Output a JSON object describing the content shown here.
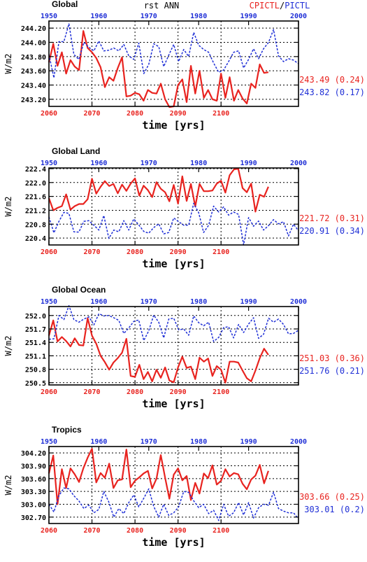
{
  "header": {
    "variable": "rst ANN",
    "legend_red": "CPICTL",
    "legend_sep": "/",
    "legend_blue": "PICTL"
  },
  "colors": {
    "red": "#e8231f",
    "blue": "#1f2fd6"
  },
  "chart_data": [
    {
      "type": "line",
      "title": "Global",
      "xlabel": "time [yrs]",
      "ylabel": "W/m2",
      "grid": true,
      "top_ticks": [
        "1950",
        "1960",
        "1970",
        "1980",
        "1990",
        "2000"
      ],
      "bottom_ticks": [
        "2060",
        "2070",
        "2080",
        "2090",
        "2100"
      ],
      "y_ticks": [
        "243.20",
        "243.40",
        "243.60",
        "243.80",
        "244.00",
        "244.20"
      ],
      "ylim": [
        243.1,
        244.3
      ],
      "x_top_range": [
        1950,
        2000
      ],
      "x_bottom_range": [
        2060,
        2118
      ],
      "series": [
        {
          "name": "CPICTL",
          "color": "red",
          "x_start": 2060,
          "values": [
            243.72,
            243.98,
            243.67,
            243.86,
            243.56,
            243.75,
            243.66,
            243.61,
            244.16,
            243.92,
            243.86,
            243.78,
            243.65,
            243.37,
            243.51,
            243.46,
            243.64,
            243.79,
            243.24,
            243.25,
            243.29,
            243.27,
            243.18,
            243.33,
            243.29,
            243.28,
            243.42,
            243.2,
            243.09,
            243.1,
            243.4,
            243.48,
            243.16,
            243.67,
            243.28,
            243.6,
            243.22,
            243.33,
            243.2,
            243.18,
            243.56,
            243.22,
            243.51,
            243.18,
            243.33,
            243.21,
            243.14,
            243.42,
            243.36,
            243.69,
            243.57,
            243.58
          ]
        },
        {
          "name": "PICTL",
          "color": "blue",
          "x_start": 1950,
          "values": [
            243.83,
            243.5,
            244.01,
            244.01,
            244.26,
            243.83,
            243.76,
            244.0,
            243.93,
            243.88,
            244.02,
            243.88,
            243.89,
            243.92,
            243.88,
            243.97,
            243.81,
            243.76,
            243.99,
            243.56,
            243.69,
            243.98,
            243.94,
            243.66,
            243.82,
            243.97,
            243.73,
            243.9,
            243.8,
            244.14,
            243.96,
            243.9,
            243.86,
            243.71,
            243.58,
            243.61,
            243.73,
            243.86,
            243.88,
            243.64,
            243.76,
            243.91,
            243.77,
            243.91,
            244.0,
            244.18,
            243.81,
            243.73,
            243.77,
            243.75,
            243.7
          ]
        }
      ],
      "stats": [
        {
          "value": "243.49",
          "sd": "(0.24)",
          "color": "red"
        },
        {
          "value": "243.82",
          "sd": "(0.17)",
          "color": "blue"
        }
      ]
    },
    {
      "type": "line",
      "title": "Global Land",
      "xlabel": "time [yrs]",
      "ylabel": "W/m2",
      "grid": true,
      "top_ticks": [
        "1950",
        "1960",
        "1970",
        "1980",
        "1990",
        "2000"
      ],
      "bottom_ticks": [
        "2060",
        "2070",
        "2080",
        "2090",
        "2100"
      ],
      "y_ticks": [
        "220.4",
        "220.8",
        "221.2",
        "221.6",
        "222.0",
        "222.4"
      ],
      "ylim": [
        220.2,
        222.42
      ],
      "x_top_range": [
        1950,
        2000
      ],
      "x_bottom_range": [
        2060,
        2118
      ],
      "series": [
        {
          "name": "CPICTL",
          "color": "red",
          "x_start": 2060,
          "values": [
            221.55,
            221.2,
            221.27,
            221.32,
            221.66,
            221.22,
            221.32,
            221.38,
            221.38,
            221.52,
            222.11,
            221.68,
            221.88,
            222.04,
            221.9,
            221.96,
            221.69,
            221.94,
            221.76,
            221.97,
            222.12,
            221.62,
            221.91,
            221.78,
            221.58,
            222.01,
            221.82,
            221.72,
            221.46,
            221.93,
            221.39,
            222.18,
            221.47,
            221.96,
            221.31,
            221.96,
            221.75,
            221.75,
            221.77,
            221.97,
            222.05,
            221.71,
            222.21,
            222.38,
            222.4,
            221.84,
            221.72,
            221.97,
            221.16,
            221.65,
            221.59,
            221.88
          ]
        },
        {
          "name": "PICTL",
          "color": "blue",
          "x_start": 1950,
          "values": [
            221.01,
            220.55,
            220.88,
            221.14,
            221.11,
            220.58,
            220.57,
            220.88,
            220.9,
            220.77,
            220.63,
            221.05,
            220.39,
            220.63,
            220.58,
            220.9,
            220.63,
            220.95,
            220.78,
            220.59,
            220.54,
            220.7,
            220.81,
            220.52,
            220.56,
            220.98,
            220.87,
            220.77,
            220.77,
            221.4,
            221.13,
            220.56,
            220.77,
            221.32,
            221.15,
            221.3,
            221.06,
            221.15,
            221.08,
            220.2,
            220.99,
            220.74,
            220.89,
            220.63,
            220.76,
            220.93,
            220.81,
            220.87,
            220.46,
            220.8,
            220.61
          ]
        }
      ],
      "stats": [
        {
          "value": "221.72",
          "sd": "(0.31)",
          "color": "red"
        },
        {
          "value": "220.91",
          "sd": "(0.34)",
          "color": "blue"
        }
      ]
    },
    {
      "type": "line",
      "title": "Global Ocean",
      "xlabel": "time [yrs]",
      "ylabel": "W/m2",
      "grid": true,
      "top_ticks": [
        "1950",
        "1960",
        "1970",
        "1980",
        "1990",
        "2000"
      ],
      "bottom_ticks": [
        "2060",
        "2070",
        "2080",
        "2090",
        "2100"
      ],
      "y_ticks": [
        "250.5",
        "250.8",
        "251.1",
        "251.4",
        "251.7",
        "252.0"
      ],
      "ylim": [
        250.45,
        252.2
      ],
      "x_top_range": [
        1950,
        2000
      ],
      "x_bottom_range": [
        2060,
        2118
      ],
      "series": [
        {
          "name": "CPICTL",
          "color": "red",
          "x_start": 2060,
          "values": [
            251.55,
            251.89,
            251.42,
            251.52,
            251.43,
            251.31,
            251.49,
            251.34,
            251.33,
            251.94,
            251.55,
            251.37,
            251.1,
            250.96,
            250.79,
            250.95,
            251.05,
            251.17,
            251.48,
            250.65,
            250.63,
            250.9,
            250.58,
            250.74,
            250.53,
            250.79,
            250.61,
            250.84,
            250.55,
            250.51,
            250.84,
            251.08,
            250.83,
            250.86,
            250.58,
            251.06,
            250.97,
            251.04,
            250.65,
            250.87,
            250.79,
            250.5,
            250.97,
            250.97,
            250.95,
            250.77,
            250.6,
            250.53,
            250.77,
            251.05,
            251.26,
            251.12
          ]
        },
        {
          "name": "PICTL",
          "color": "blue",
          "x_start": 1950,
          "values": [
            251.47,
            251.48,
            252.0,
            251.91,
            252.22,
            251.91,
            251.85,
            251.92,
            251.97,
            251.79,
            252.04,
            251.99,
            252.0,
            251.95,
            251.89,
            251.6,
            251.72,
            251.87,
            251.9,
            251.44,
            251.66,
            252.01,
            251.85,
            251.5,
            251.92,
            251.94,
            251.68,
            251.7,
            251.56,
            251.99,
            251.84,
            251.77,
            251.85,
            251.42,
            251.51,
            251.73,
            251.75,
            251.5,
            251.8,
            251.62,
            251.81,
            251.95,
            251.49,
            251.58,
            251.94,
            251.85,
            251.92,
            251.8,
            251.59,
            251.6,
            251.67
          ]
        }
      ],
      "stats": [
        {
          "value": "251.03",
          "sd": "(0.36)",
          "color": "red"
        },
        {
          "value": "251.76",
          "sd": "(0.21)",
          "color": "blue"
        }
      ]
    },
    {
      "type": "line",
      "title": "Tropics",
      "xlabel": "time [yrs]",
      "ylabel": "W/m2",
      "grid": true,
      "top_ticks": [
        "1950",
        "1960",
        "1970",
        "1980",
        "1990",
        "2000"
      ],
      "bottom_ticks": [
        "2060",
        "2070",
        "2080",
        "2090",
        "2100"
      ],
      "y_ticks": [
        "302.70",
        "303.00",
        "303.30",
        "303.60",
        "303.90",
        "304.20"
      ],
      "ylim": [
        302.55,
        304.35
      ],
      "x_top_range": [
        1950,
        2000
      ],
      "x_bottom_range": [
        2060,
        2118
      ],
      "series": [
        {
          "name": "CPICTL",
          "color": "red",
          "x_start": 2060,
          "values": [
            303.72,
            304.14,
            303.0,
            303.82,
            303.38,
            303.84,
            303.7,
            303.52,
            303.84,
            304.09,
            304.3,
            303.51,
            303.73,
            303.62,
            303.95,
            303.38,
            303.56,
            303.58,
            304.28,
            303.4,
            303.55,
            303.63,
            303.72,
            303.78,
            303.37,
            303.6,
            304.15,
            303.62,
            303.13,
            303.69,
            303.84,
            303.56,
            303.66,
            303.1,
            303.5,
            303.25,
            303.72,
            303.61,
            303.91,
            303.46,
            303.55,
            303.82,
            303.65,
            303.73,
            303.7,
            303.48,
            303.35,
            303.58,
            303.67,
            303.92,
            303.49,
            303.78
          ]
        },
        {
          "name": "PICTL",
          "color": "blue",
          "x_start": 1950,
          "values": [
            303.0,
            302.82,
            303.2,
            303.38,
            303.36,
            303.2,
            303.08,
            302.9,
            302.98,
            302.8,
            302.88,
            303.3,
            303.05,
            302.7,
            302.9,
            302.78,
            303.04,
            303.22,
            302.94,
            303.14,
            303.36,
            302.95,
            302.7,
            303.0,
            302.74,
            302.8,
            302.94,
            303.3,
            303.28,
            303.08,
            302.92,
            303.0,
            302.78,
            302.86,
            302.62,
            303.0,
            302.72,
            302.8,
            303.04,
            302.75,
            303.04,
            302.68,
            302.92,
            303.0,
            302.98,
            303.28,
            302.9,
            302.84,
            302.8,
            302.8,
            302.66
          ]
        }
      ],
      "stats": [
        {
          "value": "303.66",
          "sd": "(0.25)",
          "color": "red"
        },
        {
          "value": "303.01",
          "sd": "(0.2)",
          "color": "blue"
        }
      ]
    }
  ]
}
